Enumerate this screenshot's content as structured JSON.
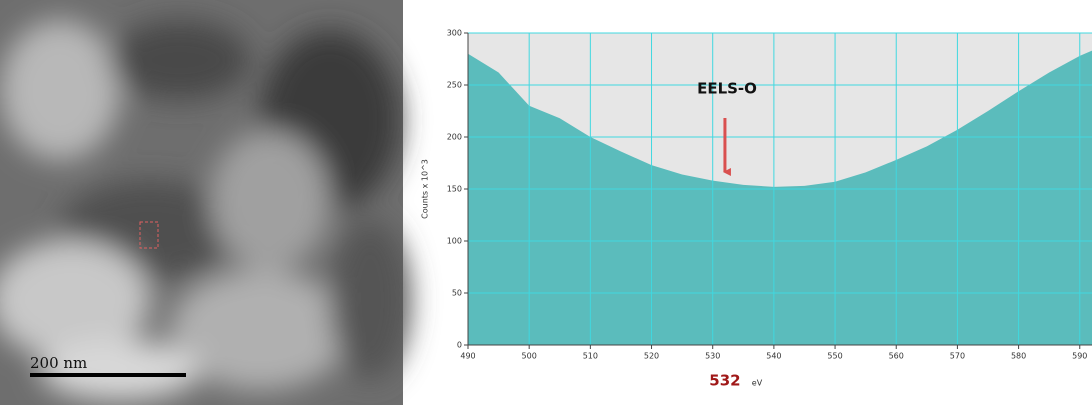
{
  "image": {
    "scale_bar": "200 nm"
  },
  "chart_data": {
    "type": "area",
    "x": [
      490,
      495,
      500,
      505,
      510,
      515,
      520,
      525,
      530,
      535,
      540,
      545,
      550,
      555,
      560,
      565,
      570,
      575,
      580,
      585,
      590,
      592
    ],
    "values": [
      280,
      262,
      230,
      218,
      200,
      186,
      173,
      164,
      158,
      154,
      152,
      153,
      157,
      166,
      178,
      191,
      207,
      225,
      244,
      262,
      278,
      283
    ],
    "color": "#5bbcbc",
    "xlim": [
      490,
      592
    ],
    "ylim": [
      0,
      300
    ],
    "xticks": [
      490,
      500,
      510,
      520,
      530,
      540,
      550,
      560,
      570,
      580,
      590
    ],
    "yticks": [
      0,
      50,
      100,
      150,
      200,
      250,
      300
    ],
    "grid": true,
    "grid_color": "#40d8e0",
    "xlabel": "eV",
    "ylabel": "Counts x 10^3",
    "annotation": "EELS-O",
    "highlight_x": 532
  }
}
